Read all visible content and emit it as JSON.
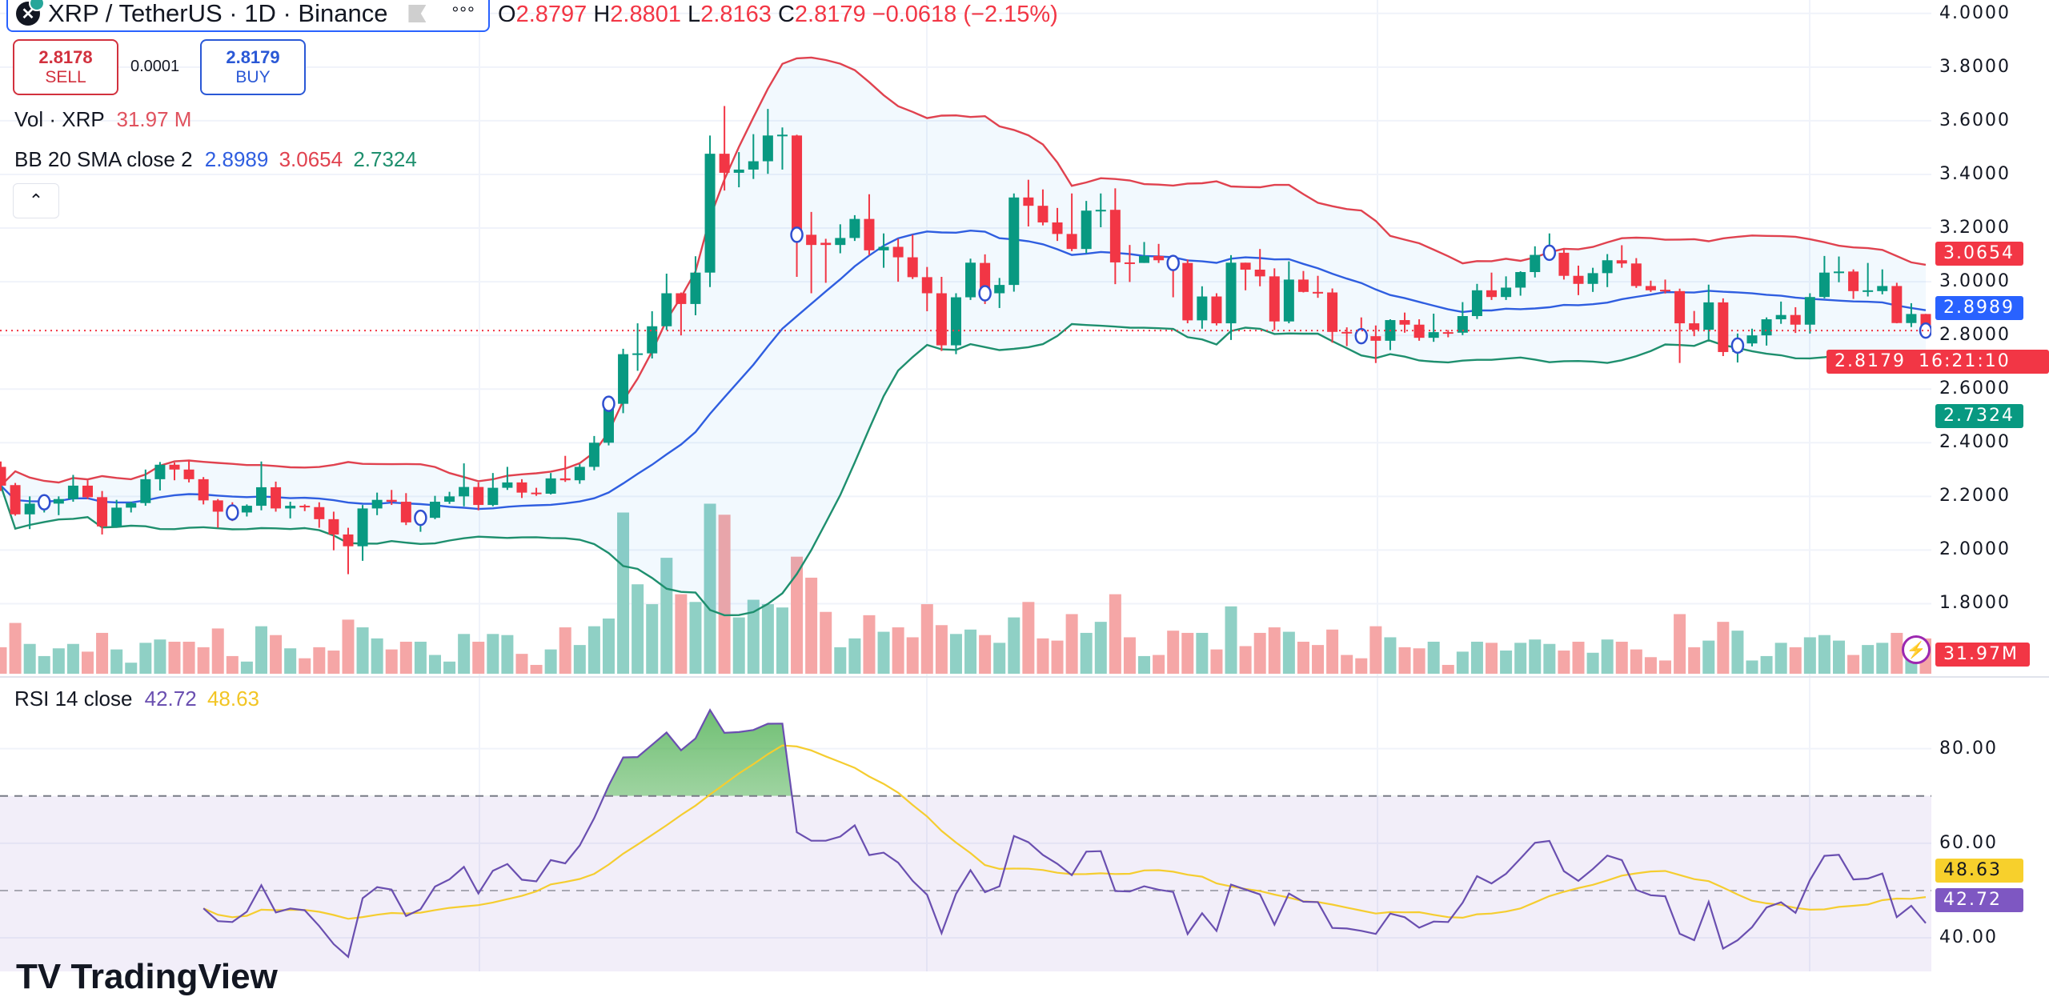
{
  "header": {
    "symbol_title": "XRP / TetherUS · 1D · Binance",
    "more_label": "°°°",
    "ohlc": {
      "o_label": "O",
      "o": "2.8797",
      "h_label": "H",
      "h": "2.8801",
      "l_label": "L",
      "l": "2.8163",
      "c_label": "C",
      "c": "2.8179",
      "change": "−0.0618 (−2.15%)"
    }
  },
  "trade": {
    "sell_price": "2.8178",
    "sell_label": "SELL",
    "spread": "0.0001",
    "buy_price": "2.8179",
    "buy_label": "BUY"
  },
  "legends": {
    "vol_name": "Vol · XRP",
    "vol_value": "31.97 M",
    "bb_name": "BB 20 SMA close 2",
    "bb_basis": "2.8989",
    "bb_upper": "3.0654",
    "bb_lower": "2.7324",
    "rsi_name": "RSI 14 close",
    "rsi_value": "42.72",
    "rsi_ma": "48.63"
  },
  "price_axis": {
    "ticks": [
      "4.0000",
      "3.8000",
      "3.6000",
      "3.4000",
      "3.2000",
      "3.0000",
      "2.8000",
      "2.6000",
      "2.4000",
      "2.2000",
      "2.0000",
      "1.8000"
    ],
    "tags": {
      "upper": "3.0654",
      "basis": "2.8989",
      "last": "2.8179",
      "countdown": "16:21:10",
      "lower": "2.7324",
      "volume": "31.97M"
    }
  },
  "rsi_axis": {
    "ticks": [
      "80.00",
      "60.00",
      "40.00"
    ],
    "tags": {
      "ma": "48.63",
      "rsi": "42.72"
    }
  },
  "logo_text": "TradingView",
  "colors": {
    "up": "#089981",
    "down": "#f23645",
    "vol_up": "#8fd0c5",
    "vol_down": "#f5a6a6",
    "bb_upper": "#e0424f",
    "bb_basis": "#2f5ee0",
    "bb_lower": "#1e8f6e",
    "bb_fill": "rgba(33,150,243,0.06)",
    "rsi_line": "#6a4fb0",
    "rsi_ma": "#f5cd30",
    "rsi_band": "rgba(126,87,194,0.10)",
    "rsi_overbought_fill": "#4caf50",
    "tag_basis": "#2962ff",
    "tag_lower": "#089981",
    "tag_ma": "#f7d02c",
    "tag_rsi": "#7e57c2"
  },
  "chart_data": {
    "type": "candlestick",
    "ylim": [
      1.53,
      4.05
    ],
    "volume_unit": "M",
    "columns": [
      "open",
      "high",
      "low",
      "close",
      "volume"
    ],
    "candles": [
      [
        2.31,
        2.33,
        2.22,
        2.24,
        24
      ],
      [
        2.242,
        2.25,
        2.128,
        2.133,
        46
      ],
      [
        2.133,
        2.2,
        2.078,
        2.173,
        27
      ],
      [
        2.173,
        2.19,
        2.14,
        2.178,
        16
      ],
      [
        2.173,
        2.2,
        2.13,
        2.19,
        23
      ],
      [
        2.19,
        2.28,
        2.18,
        2.24,
        27
      ],
      [
        2.24,
        2.26,
        2.19,
        2.197,
        20
      ],
      [
        2.197,
        2.22,
        2.058,
        2.088,
        37
      ],
      [
        2.088,
        2.187,
        2.083,
        2.158,
        22
      ],
      [
        2.158,
        2.18,
        2.14,
        2.175,
        10
      ],
      [
        2.175,
        2.3,
        2.165,
        2.264,
        28
      ],
      [
        2.264,
        2.328,
        2.222,
        2.318,
        31
      ],
      [
        2.318,
        2.326,
        2.26,
        2.3,
        29
      ],
      [
        2.3,
        2.336,
        2.252,
        2.264,
        29
      ],
      [
        2.264,
        2.272,
        2.17,
        2.185,
        24
      ],
      [
        2.185,
        2.19,
        2.083,
        2.143,
        41
      ],
      [
        2.145,
        2.178,
        2.108,
        2.14,
        16
      ],
      [
        2.14,
        2.17,
        2.125,
        2.165,
        11
      ],
      [
        2.165,
        2.33,
        2.148,
        2.234,
        43
      ],
      [
        2.234,
        2.255,
        2.143,
        2.155,
        35
      ],
      [
        2.155,
        2.18,
        2.118,
        2.165,
        23
      ],
      [
        2.165,
        2.17,
        2.145,
        2.16,
        14
      ],
      [
        2.16,
        2.178,
        2.083,
        2.115,
        24
      ],
      [
        2.115,
        2.143,
        1.999,
        2.058,
        21
      ],
      [
        2.058,
        2.083,
        1.91,
        2.014,
        49
      ],
      [
        2.014,
        2.168,
        1.96,
        2.155,
        42
      ],
      [
        2.155,
        2.214,
        2.13,
        2.187,
        32
      ],
      [
        2.187,
        2.224,
        2.168,
        2.18,
        22
      ],
      [
        2.18,
        2.212,
        2.093,
        2.103,
        29
      ],
      [
        2.105,
        2.143,
        2.068,
        2.12,
        29
      ],
      [
        2.12,
        2.202,
        2.115,
        2.18,
        17
      ],
      [
        2.18,
        2.217,
        2.172,
        2.2,
        11
      ],
      [
        2.2,
        2.323,
        2.163,
        2.235,
        36
      ],
      [
        2.235,
        2.252,
        2.148,
        2.168,
        29
      ],
      [
        2.168,
        2.287,
        2.163,
        2.232,
        36
      ],
      [
        2.232,
        2.31,
        2.224,
        2.252,
        35
      ],
      [
        2.252,
        2.264,
        2.194,
        2.214,
        18
      ],
      [
        2.214,
        2.232,
        2.202,
        2.21,
        8
      ],
      [
        2.21,
        2.287,
        2.207,
        2.267,
        22
      ],
      [
        2.267,
        2.351,
        2.254,
        2.26,
        42
      ],
      [
        2.26,
        2.32,
        2.247,
        2.31,
        26
      ],
      [
        2.31,
        2.425,
        2.297,
        2.4,
        43
      ],
      [
        2.4,
        2.564,
        2.39,
        2.545,
        50
      ],
      [
        2.545,
        2.75,
        2.51,
        2.73,
        146
      ],
      [
        2.73,
        2.845,
        2.668,
        2.733,
        81
      ],
      [
        2.733,
        2.89,
        2.714,
        2.834,
        63
      ],
      [
        2.834,
        3.03,
        2.82,
        2.957,
        105
      ],
      [
        2.957,
        2.96,
        2.8,
        2.917,
        72
      ],
      [
        2.917,
        3.095,
        2.875,
        3.034,
        65
      ],
      [
        3.034,
        3.545,
        2.98,
        3.477,
        154
      ],
      [
        3.477,
        3.655,
        3.34,
        3.406,
        144
      ],
      [
        3.406,
        3.483,
        3.352,
        3.418,
        51
      ],
      [
        3.418,
        3.55,
        3.383,
        3.449,
        67
      ],
      [
        3.449,
        3.644,
        3.402,
        3.545,
        63
      ],
      [
        3.545,
        3.575,
        3.418,
        3.548,
        60
      ],
      [
        3.545,
        3.548,
        3.018,
        3.175,
        106
      ],
      [
        3.175,
        3.26,
        2.957,
        3.137,
        87
      ],
      [
        3.145,
        3.16,
        2.996,
        3.137,
        56
      ],
      [
        3.137,
        3.214,
        3.106,
        3.163,
        24
      ],
      [
        3.163,
        3.248,
        3.152,
        3.234,
        32
      ],
      [
        3.234,
        3.326,
        3.099,
        3.117,
        53
      ],
      [
        3.117,
        3.18,
        3.052,
        3.13,
        38
      ],
      [
        3.13,
        3.16,
        3.0,
        3.091,
        42
      ],
      [
        3.091,
        3.175,
        3.01,
        3.017,
        33
      ],
      [
        3.017,
        3.055,
        2.89,
        2.957,
        63
      ],
      [
        2.957,
        3.018,
        2.742,
        2.763,
        44
      ],
      [
        2.763,
        2.957,
        2.73,
        2.942,
        36
      ],
      [
        2.942,
        3.086,
        2.932,
        3.071,
        40
      ],
      [
        3.07,
        3.102,
        2.917,
        2.957,
        35
      ],
      [
        2.957,
        3.014,
        2.902,
        2.988,
        28
      ],
      [
        2.988,
        3.329,
        2.963,
        3.314,
        51
      ],
      [
        3.314,
        3.38,
        3.206,
        3.283,
        65
      ],
      [
        3.283,
        3.344,
        3.21,
        3.221,
        32
      ],
      [
        3.221,
        3.275,
        3.152,
        3.178,
        30
      ],
      [
        3.178,
        3.329,
        3.114,
        3.122,
        54
      ],
      [
        3.122,
        3.301,
        3.106,
        3.265,
        37
      ],
      [
        3.265,
        3.329,
        3.203,
        3.268,
        47
      ],
      [
        3.268,
        3.348,
        2.991,
        3.072,
        72
      ],
      [
        3.072,
        3.137,
        2.999,
        3.07,
        33
      ],
      [
        3.07,
        3.148,
        3.07,
        3.096,
        16
      ],
      [
        3.096,
        3.141,
        3.07,
        3.08,
        17
      ],
      [
        3.08,
        3.09,
        2.942,
        3.07,
        39
      ],
      [
        3.07,
        3.083,
        2.845,
        2.856,
        37
      ],
      [
        2.856,
        2.983,
        2.825,
        2.945,
        37
      ],
      [
        2.945,
        2.957,
        2.837,
        2.845,
        22
      ],
      [
        2.845,
        3.099,
        2.783,
        3.071,
        61
      ],
      [
        3.071,
        3.071,
        2.968,
        3.045,
        25
      ],
      [
        3.045,
        3.122,
        2.983,
        3.02,
        37
      ],
      [
        3.02,
        3.05,
        2.82,
        2.852,
        42
      ],
      [
        2.852,
        3.076,
        2.845,
        3.008,
        38
      ],
      [
        3.008,
        3.04,
        2.96,
        2.962,
        29
      ],
      [
        2.962,
        3.022,
        2.94,
        2.96,
        26
      ],
      [
        2.96,
        2.975,
        2.773,
        2.813,
        40
      ],
      [
        2.813,
        2.83,
        2.76,
        2.81,
        17
      ],
      [
        2.81,
        2.867,
        2.77,
        2.797,
        14
      ],
      [
        2.797,
        2.837,
        2.697,
        2.78,
        43
      ],
      [
        2.78,
        2.86,
        2.745,
        2.857,
        33
      ],
      [
        2.857,
        2.885,
        2.81,
        2.84,
        24
      ],
      [
        2.84,
        2.86,
        2.78,
        2.791,
        23
      ],
      [
        2.791,
        2.881,
        2.776,
        2.812,
        29
      ],
      [
        2.812,
        2.82,
        2.793,
        2.81,
        8
      ],
      [
        2.81,
        2.924,
        2.801,
        2.872,
        20
      ],
      [
        2.872,
        2.992,
        2.861,
        2.968,
        29
      ],
      [
        2.968,
        3.034,
        2.932,
        2.943,
        28
      ],
      [
        2.943,
        3.02,
        2.932,
        2.978,
        21
      ],
      [
        2.978,
        3.039,
        2.948,
        3.036,
        28
      ],
      [
        3.036,
        3.132,
        3.016,
        3.1,
        31
      ],
      [
        3.1,
        3.18,
        3.09,
        3.108,
        27
      ],
      [
        3.108,
        3.124,
        3.008,
        3.022,
        21
      ],
      [
        3.022,
        3.06,
        2.95,
        2.992,
        29
      ],
      [
        2.992,
        3.052,
        2.962,
        3.032,
        19
      ],
      [
        3.032,
        3.103,
        2.98,
        3.08,
        31
      ],
      [
        3.08,
        3.136,
        3.052,
        3.068,
        29
      ],
      [
        3.068,
        3.088,
        2.977,
        2.984,
        22
      ],
      [
        2.984,
        3.004,
        2.962,
        2.968,
        15
      ],
      [
        2.97,
        3.008,
        2.956,
        2.965,
        12
      ],
      [
        2.965,
        2.974,
        2.697,
        2.845,
        54
      ],
      [
        2.845,
        2.891,
        2.797,
        2.821,
        24
      ],
      [
        2.821,
        2.989,
        2.785,
        2.923,
        30
      ],
      [
        2.923,
        2.938,
        2.723,
        2.738,
        47
      ],
      [
        2.738,
        2.807,
        2.699,
        2.762,
        39
      ],
      [
        2.77,
        2.825,
        2.759,
        2.8,
        12
      ],
      [
        2.8,
        2.867,
        2.762,
        2.86,
        16
      ],
      [
        2.86,
        2.926,
        2.843,
        2.876,
        28
      ],
      [
        2.876,
        2.905,
        2.809,
        2.84,
        24
      ],
      [
        2.84,
        2.957,
        2.807,
        2.943,
        33
      ],
      [
        2.943,
        3.096,
        2.938,
        3.034,
        35
      ],
      [
        3.034,
        3.094,
        2.998,
        3.038,
        30
      ],
      [
        3.038,
        3.046,
        2.936,
        2.965,
        17
      ],
      [
        2.965,
        3.07,
        2.945,
        2.968,
        26
      ],
      [
        2.965,
        3.046,
        2.953,
        2.984,
        28
      ],
      [
        2.984,
        2.996,
        2.845,
        2.846,
        37
      ],
      [
        2.846,
        2.92,
        2.831,
        2.8797,
        21
      ],
      [
        2.8797,
        2.8801,
        2.8163,
        2.8179,
        31.97
      ]
    ],
    "markers": [
      3,
      16,
      29,
      42,
      55,
      68,
      81,
      94,
      107,
      120,
      133
    ],
    "bollinger": {
      "length": 20,
      "mult": 2,
      "source": "close"
    },
    "rsi": {
      "length": 14,
      "ma_length": 14,
      "levels": [
        70,
        50,
        30
      ],
      "ylim": [
        32.9,
        95
      ]
    }
  }
}
